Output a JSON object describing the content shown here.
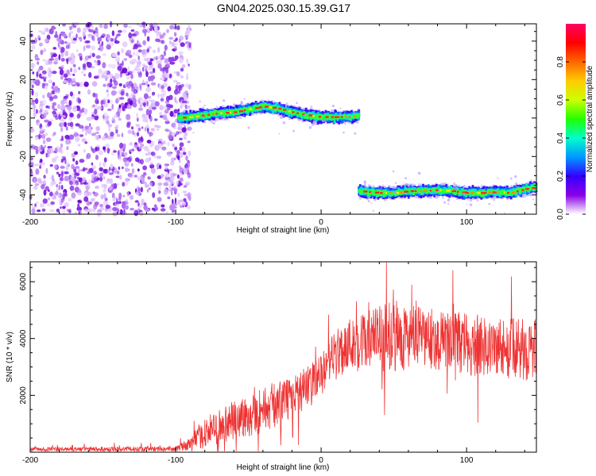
{
  "figure": {
    "title": "GN04.2025.030.15.39.G17"
  },
  "chart_data": [
    {
      "type": "heatmap",
      "xlabel": "Height of straight line (km)",
      "ylabel": "Frequency (Hz)",
      "xlim": [
        -200,
        148
      ],
      "ylim": [
        -50,
        49
      ],
      "xticks": [
        -200,
        -100,
        0,
        100
      ],
      "yticks": [
        -40,
        -20,
        0,
        20,
        40
      ],
      "grid": false,
      "noise_region": {
        "x_range": [
          -200,
          -93
        ],
        "y_range": [
          -50,
          49
        ]
      },
      "ridge_segments": [
        {
          "x": [
            -98,
            -90,
            -80,
            -70,
            -60,
            -50,
            -40,
            -30,
            -20,
            -10,
            0,
            10,
            20,
            26
          ],
          "y": [
            0,
            0.5,
            1.5,
            2.5,
            3,
            4.5,
            6,
            5,
            3,
            1.5,
            0.5,
            0.5,
            0.5,
            1
          ]
        },
        {
          "x": [
            26,
            40,
            50,
            60,
            70,
            80,
            90,
            100,
            110,
            120,
            130,
            140,
            148
          ],
          "y": [
            -38,
            -39,
            -39,
            -38,
            -38,
            -37.5,
            -38,
            -39,
            -39,
            -38.5,
            -39,
            -37,
            -36
          ]
        }
      ],
      "colorbar": {
        "label": "Normalized spectral amplitude",
        "range": [
          0,
          1
        ],
        "ticks": [
          0.0,
          0.2,
          0.4,
          0.6,
          0.8
        ],
        "colors": [
          "#ffffff",
          "#8a00e6",
          "#3300ff",
          "#0099ff",
          "#00ffcc",
          "#22ff00",
          "#ccff00",
          "#ffcc00",
          "#ff6600",
          "#ff0000",
          "#ff0066"
        ]
      }
    },
    {
      "type": "line",
      "xlabel": "Height of straight line (km)",
      "ylabel": "SNR (10 * v/v)",
      "xlim": [
        -200,
        148
      ],
      "ylim": [
        0,
        6700
      ],
      "xticks": [
        -200,
        -100,
        0,
        100
      ],
      "yticks": [
        2000,
        4000,
        6000
      ],
      "grid": false,
      "series": [
        {
          "color": "#ee3333",
          "envelope_x": [
            -200,
            -100,
            -90,
            -80,
            -70,
            -60,
            -50,
            -40,
            -30,
            -20,
            -10,
            0,
            5,
            10,
            20,
            30,
            40,
            50,
            60,
            70,
            80,
            90,
            100,
            110,
            120,
            130,
            140,
            148
          ],
          "envelope_mean": [
            100,
            120,
            300,
            700,
            900,
            1100,
            1300,
            1500,
            1700,
            1900,
            2300,
            2700,
            3100,
            3500,
            3800,
            3900,
            4000,
            4100,
            4050,
            4000,
            3950,
            3900,
            3800,
            3750,
            3700,
            3650,
            3600,
            3600
          ],
          "envelope_spread": [
            80,
            100,
            250,
            600,
            700,
            800,
            900,
            900,
            900,
            800,
            800,
            800,
            800,
            1000,
            1100,
            1200,
            1300,
            1400,
            1300,
            1200,
            1200,
            1200,
            1200,
            1200,
            1200,
            1200,
            1200,
            1200
          ]
        }
      ]
    }
  ]
}
